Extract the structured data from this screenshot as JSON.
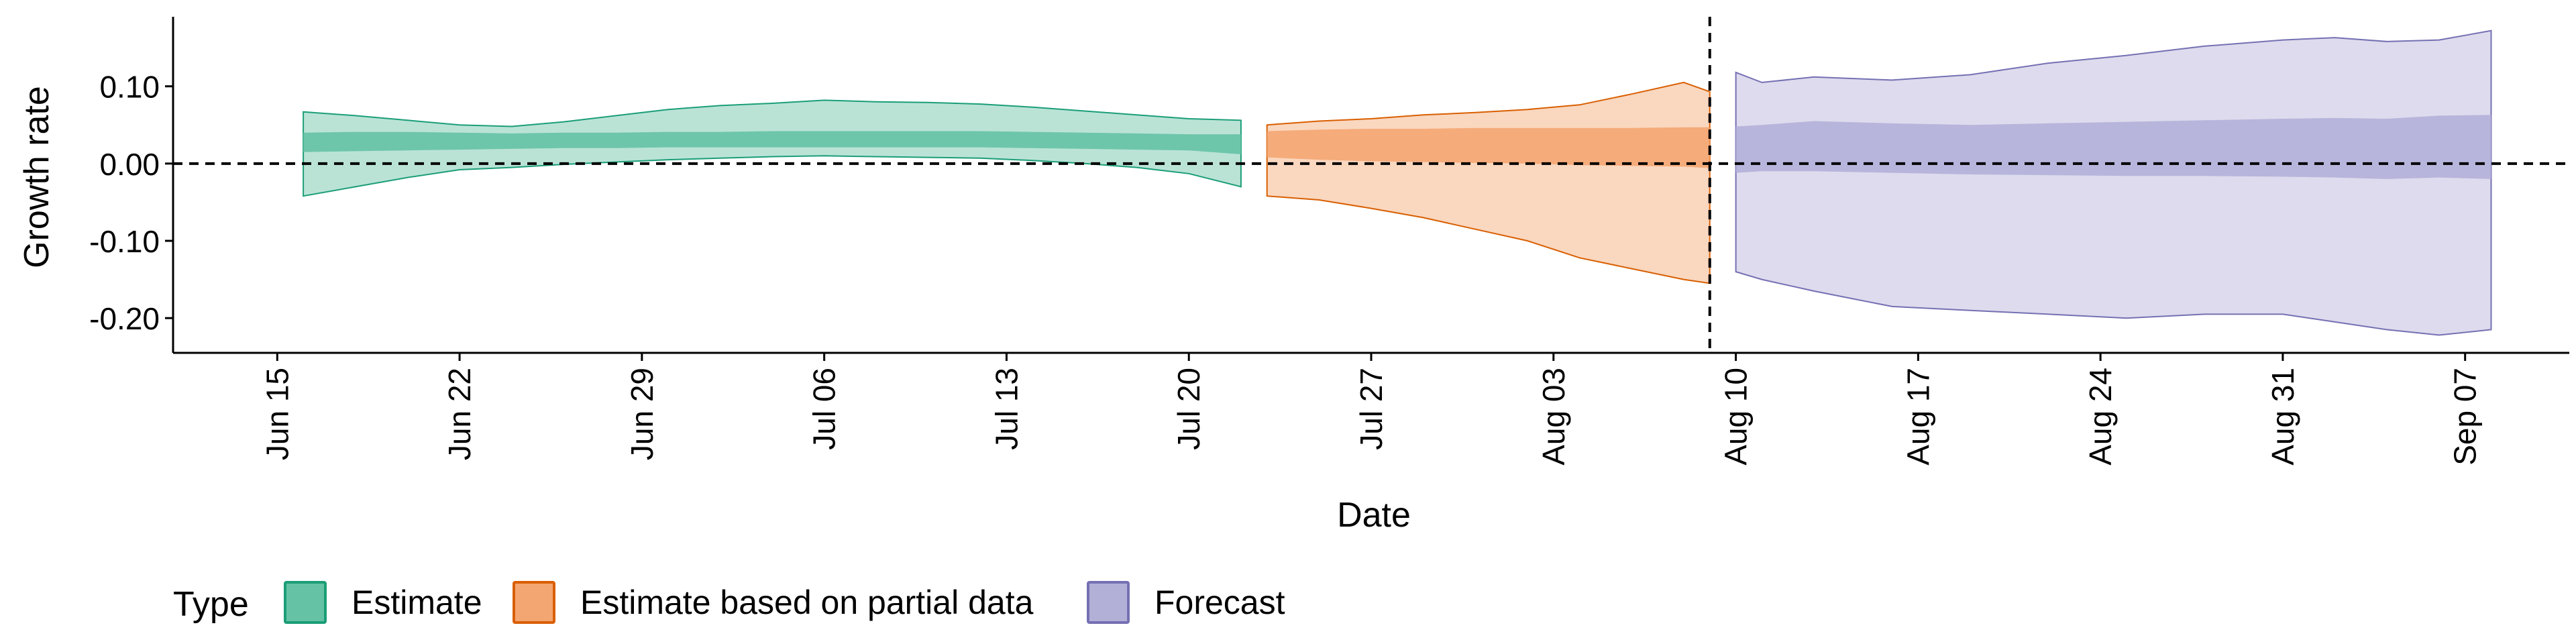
{
  "chart_data": {
    "type": "area",
    "xlabel": "Date",
    "ylabel": "Growth rate",
    "xlim": [
      "2021-06-11",
      "2021-09-11"
    ],
    "ylim": [
      -0.245,
      0.19
    ],
    "x_ticks": [
      "2021-06-15",
      "2021-06-22",
      "2021-06-29",
      "2021-07-06",
      "2021-07-13",
      "2021-07-20",
      "2021-07-27",
      "2021-08-03",
      "2021-08-10",
      "2021-08-17",
      "2021-08-24",
      "2021-08-31",
      "2021-09-07"
    ],
    "x_tick_labels": [
      "Jun 15",
      "Jun 22",
      "Jun 29",
      "Jul 06",
      "Jul 13",
      "Jul 20",
      "Jul 27",
      "Aug 03",
      "Aug 10",
      "Aug 17",
      "Aug 24",
      "Aug 31",
      "Sep 07"
    ],
    "y_ticks": [
      0.1,
      0.0,
      -0.1,
      -0.2
    ],
    "y_tick_labels": [
      "0.10",
      "0.00",
      "-0.10",
      "-0.20"
    ],
    "reference_lines": {
      "y": 0,
      "x": "2021-08-09"
    },
    "grid": false,
    "legend": {
      "title": "Type",
      "position": "bottom-left",
      "entries": [
        "Estimate",
        "Estimate based on partial data",
        "Forecast"
      ]
    },
    "series": [
      {
        "name": "Estimate",
        "color": "#1b9e77",
        "fill": "#66c2a5",
        "x": [
          "2021-06-16",
          "2021-06-18",
          "2021-06-20",
          "2021-06-22",
          "2021-06-24",
          "2021-06-26",
          "2021-06-28",
          "2021-06-30",
          "2021-07-02",
          "2021-07-04",
          "2021-07-06",
          "2021-07-08",
          "2021-07-10",
          "2021-07-12",
          "2021-07-14",
          "2021-07-16",
          "2021-07-18",
          "2021-07-20",
          "2021-07-22"
        ],
        "outer_lower": [
          -0.042,
          -0.03,
          -0.018,
          -0.008,
          -0.005,
          -0.001,
          0.002,
          0.005,
          0.007,
          0.009,
          0.01,
          0.009,
          0.008,
          0.007,
          0.004,
          0.0,
          -0.005,
          -0.013,
          -0.03
        ],
        "outer_upper": [
          0.067,
          0.062,
          0.056,
          0.05,
          0.048,
          0.054,
          0.062,
          0.07,
          0.075,
          0.078,
          0.082,
          0.08,
          0.079,
          0.077,
          0.073,
          0.068,
          0.063,
          0.058,
          0.056
        ],
        "inner_lower": [
          0.015,
          0.016,
          0.017,
          0.018,
          0.019,
          0.02,
          0.02,
          0.021,
          0.021,
          0.021,
          0.021,
          0.021,
          0.021,
          0.021,
          0.02,
          0.019,
          0.018,
          0.017,
          0.012
        ],
        "inner_upper": [
          0.04,
          0.041,
          0.041,
          0.04,
          0.039,
          0.04,
          0.04,
          0.041,
          0.041,
          0.042,
          0.042,
          0.042,
          0.042,
          0.042,
          0.041,
          0.04,
          0.039,
          0.038,
          0.038
        ]
      },
      {
        "name": "Estimate based on partial data",
        "color": "#d95f02",
        "fill": "#f4a672",
        "x": [
          "2021-07-23",
          "2021-07-25",
          "2021-07-27",
          "2021-07-29",
          "2021-07-31",
          "2021-08-02",
          "2021-08-04",
          "2021-08-06",
          "2021-08-08",
          "2021-08-09"
        ],
        "outer_lower": [
          -0.042,
          -0.047,
          -0.058,
          -0.07,
          -0.085,
          -0.1,
          -0.122,
          -0.136,
          -0.15,
          -0.155
        ],
        "outer_upper": [
          0.05,
          0.055,
          0.058,
          0.063,
          0.066,
          0.07,
          0.076,
          0.09,
          0.105,
          0.093
        ],
        "inner_lower": [
          0.008,
          0.005,
          0.003,
          0.002,
          0.001,
          0.0,
          -0.002,
          -0.003,
          -0.004,
          -0.006
        ],
        "inner_upper": [
          0.042,
          0.044,
          0.045,
          0.045,
          0.046,
          0.046,
          0.046,
          0.046,
          0.047,
          0.047
        ]
      },
      {
        "name": "Forecast",
        "color": "#7570b3",
        "fill": "#b3b0d8",
        "x": [
          "2021-08-10",
          "2021-08-11",
          "2021-08-13",
          "2021-08-16",
          "2021-08-19",
          "2021-08-22",
          "2021-08-25",
          "2021-08-28",
          "2021-08-31",
          "2021-09-02",
          "2021-09-04",
          "2021-09-06",
          "2021-09-08"
        ],
        "outer_lower": [
          -0.14,
          -0.15,
          -0.165,
          -0.185,
          -0.19,
          -0.195,
          -0.2,
          -0.195,
          -0.195,
          -0.205,
          -0.215,
          -0.222,
          -0.215
        ],
        "outer_upper": [
          0.118,
          0.105,
          0.112,
          0.108,
          0.115,
          0.13,
          0.14,
          0.152,
          0.16,
          0.163,
          0.158,
          0.16,
          0.172
        ],
        "inner_lower": [
          -0.012,
          -0.01,
          -0.01,
          -0.012,
          -0.014,
          -0.015,
          -0.016,
          -0.016,
          -0.017,
          -0.018,
          -0.02,
          -0.018,
          -0.02
        ],
        "inner_upper": [
          0.048,
          0.05,
          0.055,
          0.052,
          0.05,
          0.052,
          0.054,
          0.056,
          0.058,
          0.059,
          0.058,
          0.062,
          0.063
        ]
      }
    ]
  }
}
